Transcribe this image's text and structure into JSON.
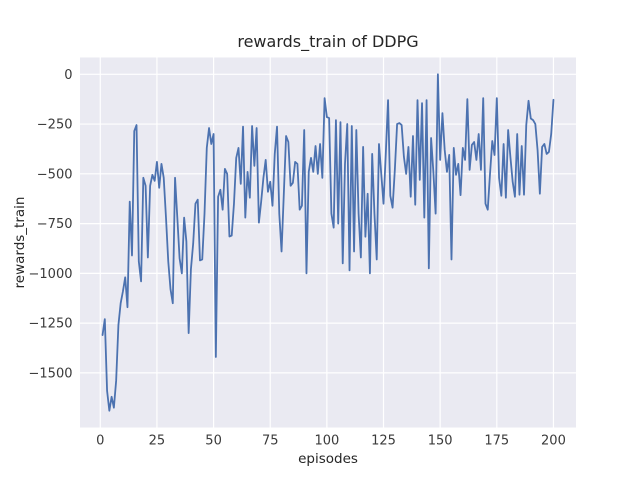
{
  "figure": {
    "background": "#ffffff",
    "axes_background": "#eaeaf2",
    "grid_color": "#ffffff",
    "title_color": "#262626",
    "tick_color": "#3a3a3a",
    "line_color": "#4c72b0"
  },
  "chart_data": {
    "type": "line",
    "title": "rewards_train of DDPG",
    "xlabel": "episodes",
    "ylabel": "rewards_train",
    "grid": true,
    "legend_position": "none",
    "xlim": [
      -8.95,
      209.95
    ],
    "ylim": [
      -1774.5,
      84.5
    ],
    "x_ticks": [
      0,
      25,
      50,
      75,
      100,
      125,
      150,
      175,
      200
    ],
    "x_tick_labels": [
      "0",
      "25",
      "50",
      "75",
      "100",
      "125",
      "150",
      "175",
      "200"
    ],
    "y_ticks": [
      0,
      -250,
      -500,
      -750,
      -1000,
      -1250,
      -1500
    ],
    "y_tick_labels": [
      "0",
      "−250",
      "−500",
      "−750",
      "−1000",
      "−1250",
      "−1500"
    ],
    "series": [
      {
        "name": "rewards_train",
        "x_start": 1,
        "y": [
          -1310,
          -1230,
          -1590,
          -1690,
          -1620,
          -1675,
          -1540,
          -1260,
          -1150,
          -1090,
          -1020,
          -1170,
          -640,
          -910,
          -285,
          -255,
          -940,
          -1040,
          -520,
          -560,
          -920,
          -560,
          -505,
          -535,
          -440,
          -570,
          -450,
          -520,
          -720,
          -940,
          -1080,
          -1150,
          -520,
          -720,
          -925,
          -1000,
          -720,
          -840,
          -1300,
          -980,
          -850,
          -650,
          -630,
          -935,
          -930,
          -700,
          -370,
          -270,
          -350,
          -300,
          -1420,
          -615,
          -580,
          -680,
          -475,
          -500,
          -815,
          -810,
          -650,
          -420,
          -370,
          -550,
          -263,
          -720,
          -490,
          -620,
          -260,
          -460,
          -270,
          -745,
          -640,
          -520,
          -430,
          -590,
          -540,
          -660,
          -400,
          -263,
          -700,
          -890,
          -600,
          -310,
          -340,
          -560,
          -545,
          -440,
          -450,
          -680,
          -660,
          -280,
          -1000,
          -490,
          -420,
          -490,
          -360,
          -500,
          -350,
          -520,
          -120,
          -215,
          -220,
          -700,
          -770,
          -230,
          -750,
          -240,
          -950,
          -450,
          -250,
          -985,
          -260,
          -890,
          -280,
          -700,
          -920,
          -365,
          -816,
          -600,
          -1000,
          -400,
          -700,
          -930,
          -350,
          -500,
          -650,
          -400,
          -130,
          -610,
          -670,
          -480,
          -250,
          -245,
          -255,
          -415,
          -500,
          -365,
          -615,
          -310,
          -655,
          -130,
          -530,
          -145,
          -720,
          -130,
          -975,
          -320,
          -490,
          -700,
          0,
          -430,
          -195,
          -380,
          -490,
          -405,
          -930,
          -370,
          -505,
          -450,
          -607,
          -370,
          -430,
          -125,
          -480,
          -355,
          -340,
          -430,
          -300,
          -480,
          -120,
          -650,
          -680,
          -500,
          -335,
          -405,
          -120,
          -520,
          -610,
          -350,
          -620,
          -280,
          -415,
          -540,
          -615,
          -300,
          -605,
          -360,
          -605,
          -255,
          -133,
          -222,
          -230,
          -250,
          -382,
          -600,
          -365,
          -350,
          -400,
          -390,
          -300,
          -128
        ]
      }
    ]
  }
}
